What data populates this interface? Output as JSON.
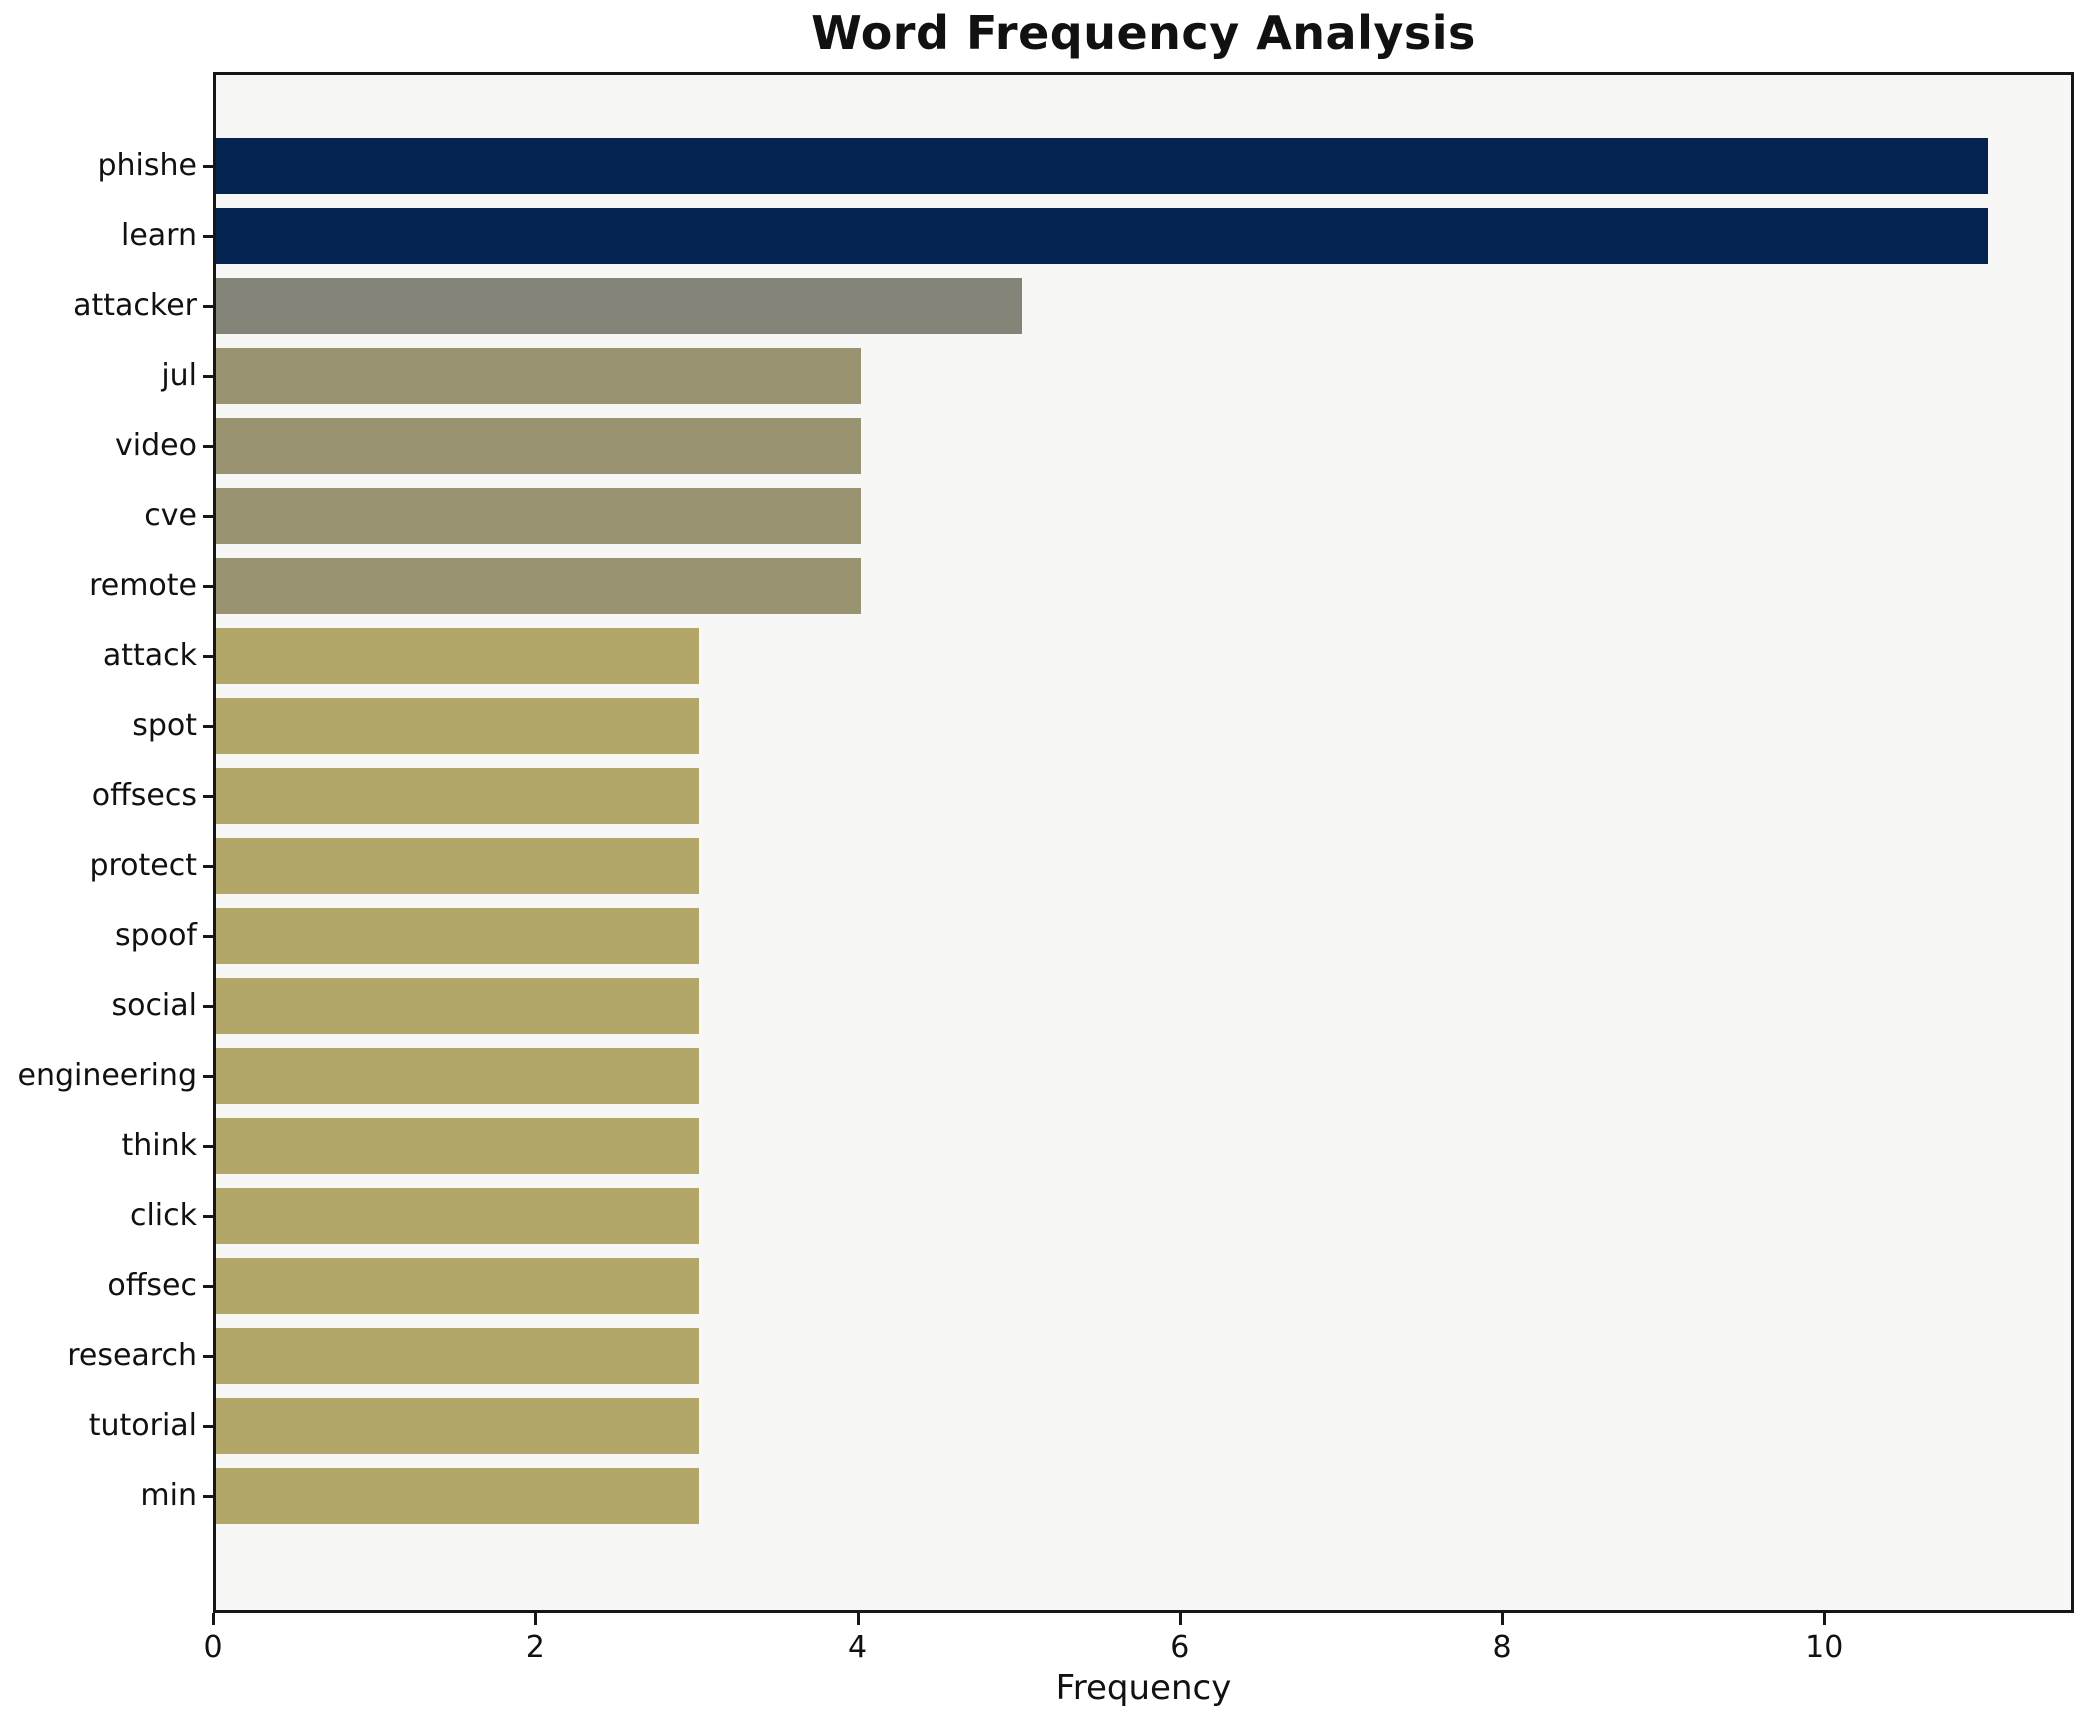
{
  "title": "Word Frequency Analysis",
  "xlabel": "Frequency",
  "chart_data": {
    "type": "bar",
    "orientation": "horizontal",
    "title": "Word Frequency Analysis",
    "xlabel": "Frequency",
    "ylabel": "",
    "categories": [
      "phishe",
      "learn",
      "attacker",
      "jul",
      "video",
      "cve",
      "remote",
      "attack",
      "spot",
      "offsecs",
      "protect",
      "spoof",
      "social",
      "engineering",
      "think",
      "click",
      "offsec",
      "research",
      "tutorial",
      "min"
    ],
    "values": [
      11,
      11,
      5,
      4,
      4,
      4,
      4,
      3,
      3,
      3,
      3,
      3,
      3,
      3,
      3,
      3,
      3,
      3,
      3,
      3
    ],
    "bar_colors": [
      "#042350",
      "#042350",
      "#858478",
      "#9A9372",
      "#9A9372",
      "#9A9372",
      "#9A9372",
      "#B2A768",
      "#B2A768",
      "#B2A768",
      "#B2A768",
      "#B2A768",
      "#B2A768",
      "#B2A768",
      "#B2A768",
      "#B2A768",
      "#B2A768",
      "#B2A768",
      "#B2A768",
      "#B2A768"
    ],
    "xlim": [
      0,
      11.55
    ],
    "xticks": [
      0,
      2,
      4,
      6,
      8,
      10
    ],
    "grid": false,
    "legend": null,
    "plot_bg": "#f7f7f6",
    "figure_bg": "#ffffff",
    "spine_color": "#161616"
  }
}
